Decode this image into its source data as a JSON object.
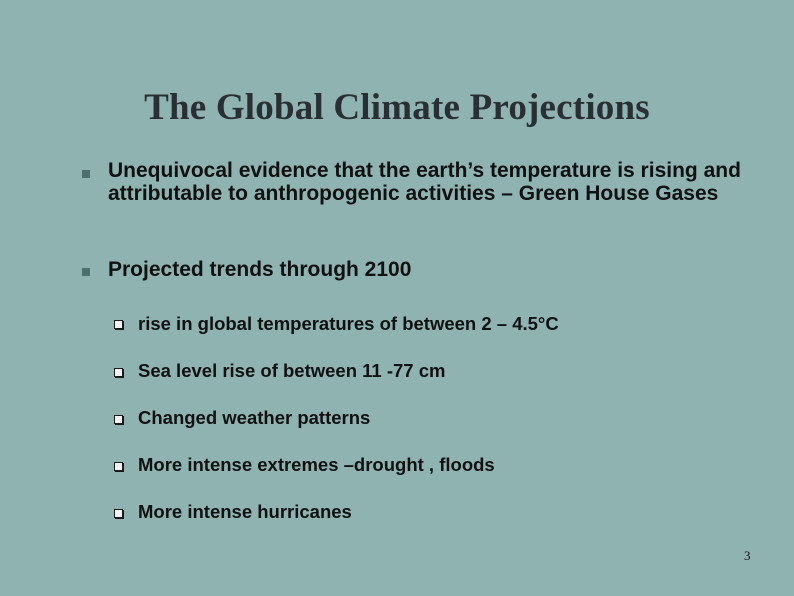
{
  "slide": {
    "title": "The Global Climate Projections",
    "bullets": [
      {
        "text": "Unequivocal evidence that the earth’s temperature is rising and attributable to anthropogenic activities – Green House Gases"
      },
      {
        "text": "Projected trends through 2100",
        "sub_bullets": [
          {
            "text": "rise in global temperatures of between 2 – 4.5°C"
          },
          {
            "text": "Sea level rise of between 11 -77 cm"
          },
          {
            "text": "Changed weather patterns"
          },
          {
            "text": "More intense extremes –drought , floods"
          },
          {
            "text": "More intense hurricanes"
          }
        ]
      }
    ],
    "page_number": "3"
  },
  "colors": {
    "background": "#8fb3b1",
    "title": "#2a2f33",
    "bullet_marker": "#4d6f6d"
  }
}
